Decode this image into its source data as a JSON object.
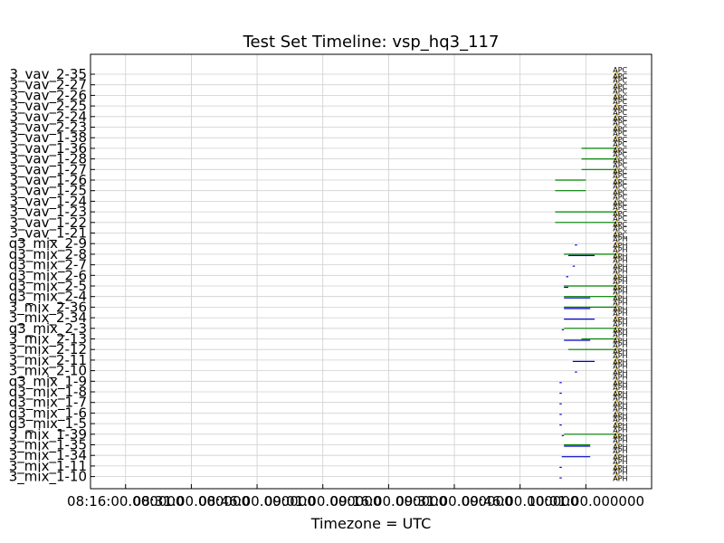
{
  "chart_data": {
    "type": "timeline",
    "title": "Test Set Timeline: vsp_hq3_117",
    "xlabel": "Timezone = UTC",
    "ylabel": "",
    "grid": true,
    "x_tick_labels": [
      "08:16:00.000000",
      "08:31:00.000000",
      "08:46:00.000000",
      "09:01:00.000000",
      "09:16:00.000000",
      "09:31:00.000000",
      "09:46:00.000000",
      "10:01:00.000000"
    ],
    "xlim": [
      "08:08:00",
      "10:16:00"
    ],
    "marker_text_upper": "APC",
    "marker_text_lower": "APH",
    "y_labels": [
      "3_vav_2-35",
      "3_vav_2-27",
      "3_vav_2-26",
      "3_vav_2-25",
      "3_vav_2-24",
      "3_vav_2-23",
      "3_vav_1-38",
      "3_vav_1-36",
      "3_vav_1-28",
      "3_vav_1-27",
      "3_vav_1-26",
      "3_vav_1-25",
      "3_vav_1-24",
      "3_vav_1-23",
      "3_vav_1-22",
      "3_vav_1-21",
      "q3_mix_2-9",
      "q3_mix_2-8",
      "q3_mix_2-7",
      "q3_mix_2-6",
      "q3_mix_2-5",
      "q3_mix_2-4",
      "3_mix_2-36",
      "3_mix_2-34",
      "q3_mix_2-3",
      "3_mix_2-13",
      "3_mix_2-12",
      "3_mix_2-11",
      "3_mix_2-10",
      "q3_mix_1-9",
      "q3_mix_1-8",
      "q3_mix_1-7",
      "q3_mix_1-6",
      "q3_mix_1-5",
      "3_mix_1-39",
      "3_mix_1-35",
      "3_mix_1-34",
      "3_mix_1-11",
      "3_mix_1-10"
    ],
    "series": [
      {
        "color": "#008000",
        "segments": [
          {
            "row": 7,
            "start": "10:00:00",
            "end": "10:08:00"
          },
          {
            "row": 8,
            "start": "10:00:00",
            "end": "10:08:00"
          },
          {
            "row": 9,
            "start": "10:00:00",
            "end": "10:08:00"
          },
          {
            "row": 10,
            "start": "09:54:00",
            "end": "10:01:00"
          },
          {
            "row": 11,
            "start": "09:54:00",
            "end": "10:01:00"
          },
          {
            "row": 13,
            "start": "09:54:00",
            "end": "10:08:00"
          },
          {
            "row": 14,
            "start": "09:54:00",
            "end": "10:08:00"
          },
          {
            "row": 17,
            "start": "09:56:00",
            "end": "10:08:00"
          },
          {
            "row": 20,
            "start": "09:56:00",
            "end": "10:08:00"
          },
          {
            "row": 21,
            "start": "09:56:00",
            "end": "10:08:00"
          },
          {
            "row": 22,
            "start": "09:56:00",
            "end": "10:08:00"
          },
          {
            "row": 24,
            "start": "09:56:00",
            "end": "10:08:00"
          },
          {
            "row": 25,
            "start": "10:00:00",
            "end": "10:08:00"
          },
          {
            "row": 26,
            "start": "09:57:00",
            "end": "10:08:00"
          },
          {
            "row": 34,
            "start": "09:56:00",
            "end": "10:08:00"
          },
          {
            "row": 35,
            "start": "09:56:00",
            "end": "10:02:00"
          }
        ]
      },
      {
        "color": "#0000cc",
        "segments": [
          {
            "row": 16,
            "start": "09:58:30",
            "end": "09:59:00"
          },
          {
            "row": 17,
            "start": "09:57:00",
            "end": "10:03:00"
          },
          {
            "row": 18,
            "start": "09:58:00",
            "end": "09:58:30"
          },
          {
            "row": 19,
            "start": "09:56:30",
            "end": "09:57:00"
          },
          {
            "row": 20,
            "start": "09:56:00",
            "end": "09:57:00"
          },
          {
            "row": 21,
            "start": "09:56:00",
            "end": "10:02:00"
          },
          {
            "row": 22,
            "start": "09:56:00",
            "end": "10:02:00"
          },
          {
            "row": 23,
            "start": "09:56:00",
            "end": "10:03:00"
          },
          {
            "row": 24,
            "start": "09:55:30",
            "end": "09:56:00"
          },
          {
            "row": 25,
            "start": "09:56:00",
            "end": "10:02:00"
          },
          {
            "row": 27,
            "start": "09:58:00",
            "end": "10:03:00"
          },
          {
            "row": 28,
            "start": "09:58:30",
            "end": "09:59:00"
          },
          {
            "row": 29,
            "start": "09:55:00",
            "end": "09:55:30"
          },
          {
            "row": 30,
            "start": "09:55:00",
            "end": "09:55:30"
          },
          {
            "row": 31,
            "start": "09:55:00",
            "end": "09:55:30"
          },
          {
            "row": 32,
            "start": "09:55:00",
            "end": "09:55:30"
          },
          {
            "row": 33,
            "start": "09:55:00",
            "end": "09:55:30"
          },
          {
            "row": 34,
            "start": "09:55:30",
            "end": "09:56:00"
          },
          {
            "row": 35,
            "start": "09:56:00",
            "end": "10:02:00"
          },
          {
            "row": 36,
            "start": "09:55:30",
            "end": "10:02:00"
          },
          {
            "row": 37,
            "start": "09:55:00",
            "end": "09:55:30"
          },
          {
            "row": 38,
            "start": "09:55:00",
            "end": "09:55:30"
          }
        ]
      }
    ],
    "marker_time": "10:08:00",
    "marker_color": "#c8a000"
  }
}
